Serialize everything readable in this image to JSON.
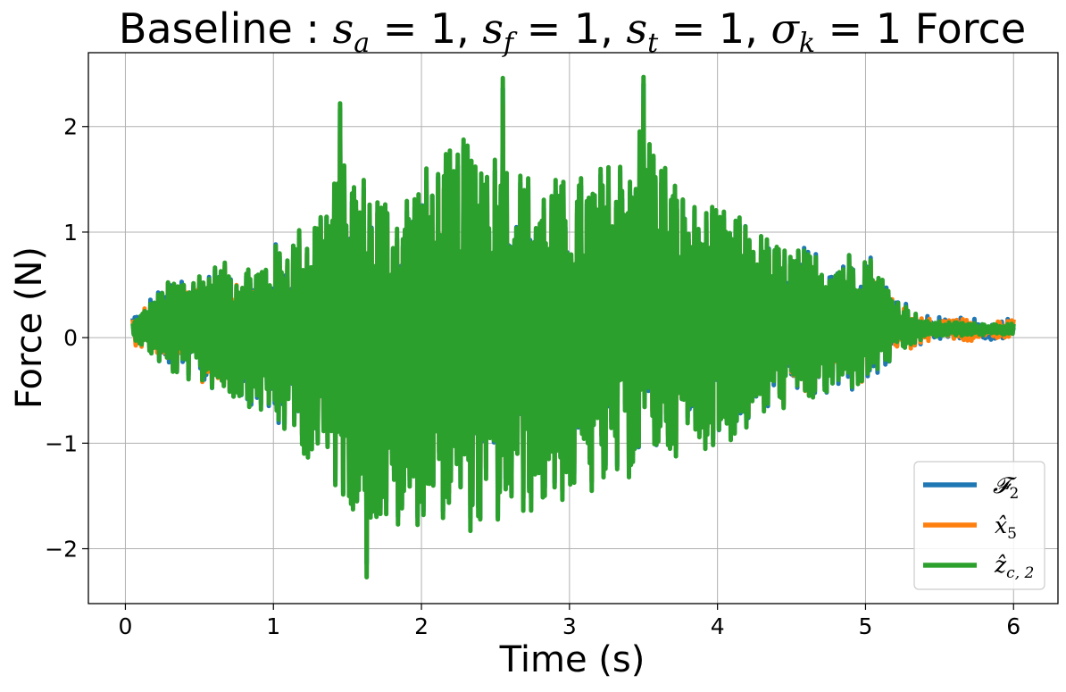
{
  "chart_data": {
    "type": "line",
    "title": "Baseline : s_a = 1, s_f = 1, s_t = 1, σ_k = 1 Force",
    "title_parts": {
      "prefix": "Baseline : ",
      "s": "s",
      "sub_a": "a",
      "sub_f": "f",
      "sub_t": "t",
      "sigma": "σ",
      "sub_k": "k",
      "eq_one": " = 1",
      "comma": ", ",
      "suffix": " Force"
    },
    "xlabel": "Time (s)",
    "ylabel": "Force (N)",
    "xlim": [
      -0.25,
      6.3
    ],
    "ylim": [
      -2.52,
      2.7
    ],
    "x_ticks": [
      0,
      1,
      2,
      3,
      4,
      5,
      6
    ],
    "y_ticks": [
      -2,
      -1,
      0,
      1,
      2
    ],
    "x_tick_labels": [
      "0",
      "1",
      "2",
      "3",
      "4",
      "5",
      "6"
    ],
    "y_tick_labels": [
      "−2",
      "−1",
      "0",
      "1",
      "2"
    ],
    "grid": true,
    "legend_position": "bottom-right",
    "signal_start": 0.05,
    "signal_end": 6.0,
    "envelope": {
      "t": [
        0.05,
        0.3,
        0.6,
        0.9,
        1.2,
        1.5,
        1.8,
        2.1,
        2.4,
        2.7,
        3.0,
        3.3,
        3.5,
        3.8,
        4.1,
        4.4,
        4.7,
        5.0,
        5.2,
        5.4,
        5.7,
        6.0
      ],
      "upper": [
        0.15,
        0.55,
        0.7,
        0.75,
        1.1,
        1.7,
        1.4,
        1.7,
        2.0,
        1.6,
        1.5,
        1.7,
        2.1,
        1.3,
        1.2,
        0.9,
        0.8,
        0.85,
        0.4,
        0.16,
        0.14,
        0.13
      ],
      "lower": [
        0.0,
        -0.35,
        -0.5,
        -0.7,
        -1.1,
        -1.6,
        -1.9,
        -1.7,
        -1.9,
        -1.7,
        -1.55,
        -1.5,
        -1.2,
        -1.1,
        -1.0,
        -0.7,
        -0.6,
        -0.45,
        -0.2,
        0.0,
        0.02,
        0.03
      ]
    },
    "peaks": {
      "max": {
        "x": 2.55,
        "y": 2.46
      },
      "max2": {
        "x": 3.5,
        "y": 2.47
      },
      "max3": {
        "x": 1.45,
        "y": 2.22
      },
      "min": {
        "x": 1.63,
        "y": -2.27
      }
    },
    "series": [
      {
        "name": "𝓕",
        "sub": "2",
        "color": "#1f77b4",
        "scale": 1.05
      },
      {
        "name": "x̂",
        "sub": "5",
        "color": "#ff7f0e",
        "scale": 1.0
      },
      {
        "name": "ẑ",
        "sub": "c, 2",
        "color": "#2ca02c",
        "scale": 1.08
      }
    ]
  }
}
